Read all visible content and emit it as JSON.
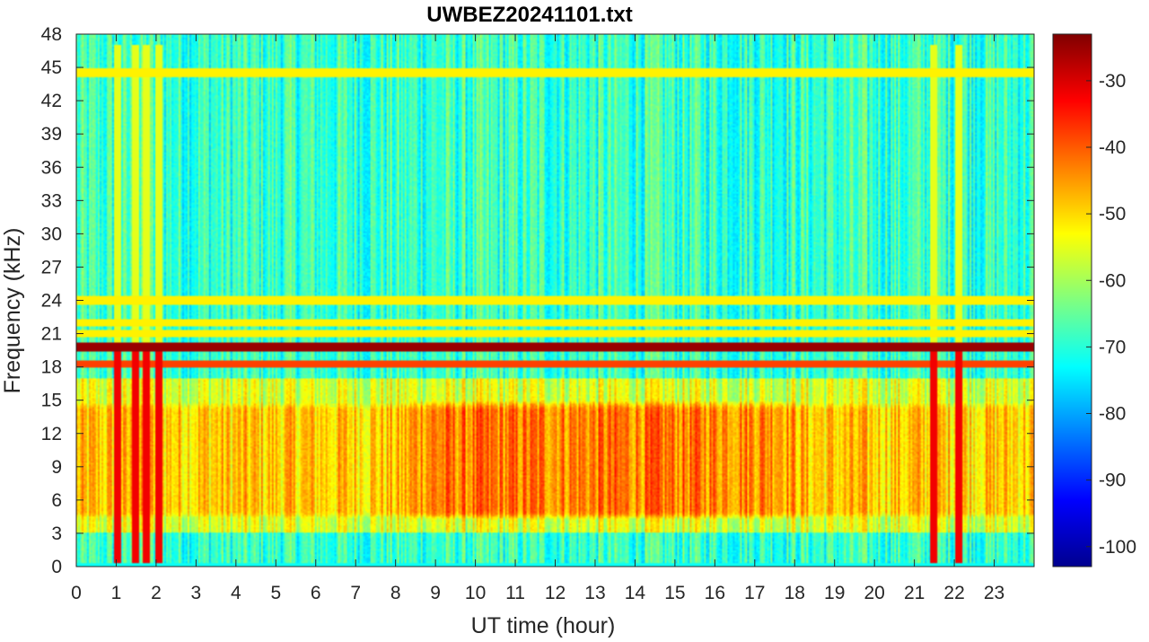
{
  "chart_data": {
    "type": "heatmap",
    "title": "UWBEZ20241101.txt",
    "xlabel": "UT time (hour)",
    "ylabel": "Frequency (kHz)",
    "xlim": [
      0,
      24
    ],
    "ylim": [
      0,
      48
    ],
    "x_ticks": [
      0,
      1,
      2,
      3,
      4,
      5,
      6,
      7,
      8,
      9,
      10,
      11,
      12,
      13,
      14,
      15,
      16,
      17,
      18,
      19,
      20,
      21,
      22,
      23
    ],
    "y_ticks": [
      0,
      3,
      6,
      9,
      12,
      15,
      18,
      21,
      24,
      27,
      30,
      33,
      36,
      39,
      42,
      45,
      48
    ],
    "colorbar": {
      "colormap": "jet",
      "range": [
        -103,
        -23
      ],
      "ticks": [
        -100,
        -90,
        -80,
        -70,
        -60,
        -50,
        -40,
        -30
      ],
      "location": "right"
    },
    "features": {
      "constant_lines_khz": [
        19.8,
        18.3,
        24.0,
        22.0,
        21.0,
        44.5
      ],
      "strongest_line_khz": 19.8,
      "broadband_events_hour": [
        1.05,
        1.5,
        1.75,
        2.05,
        21.5,
        22.1
      ],
      "daytime_hiss_band_khz": [
        5,
        15
      ],
      "daytime_hiss_hours": [
        8.5,
        18.5
      ],
      "background_level_db": -72,
      "hiss_level_db": -45
    }
  }
}
